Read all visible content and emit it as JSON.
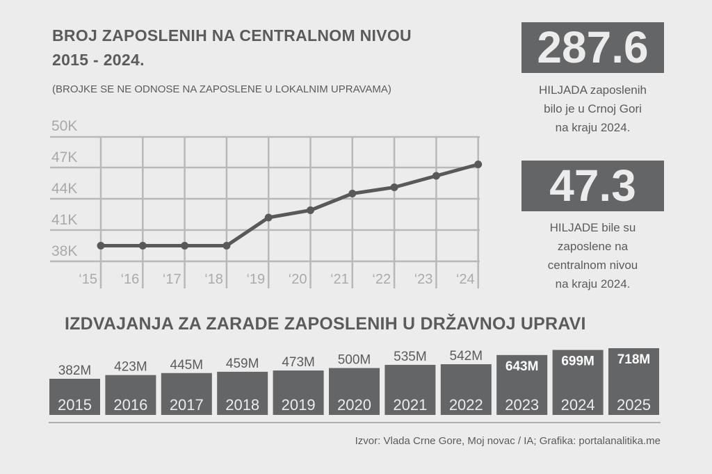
{
  "header": {
    "title_line1": "BROJ ZAPOSLENIH NA CENTRALNOM NIVOU",
    "title_line2": "2015 - 2024.",
    "subtitle": "(BROJKE SE NE ODNOSE NA ZAPOSLENE U LOKALNIM UPRAVAMA)"
  },
  "stats": [
    {
      "value": "287.6",
      "lines": [
        "HILJADA zaposlenih",
        "bilo je u Crnoj Gori",
        "na kraju 2024."
      ]
    },
    {
      "value": "47.3",
      "lines": [
        "HILJADE bile su",
        "zaposlene na",
        "centralnom nivou",
        "na kraju 2024."
      ]
    }
  ],
  "section2_title": "IZDVAJANJA ZA ZARADE ZAPOSLENIH U DRŽAVNOJ UPRAVI",
  "source": "Izvor: Vlada Crne Gore, Moj novac / IA; Grafika: portalanalitika.me",
  "colors": {
    "background": "#ececec",
    "dark": "#646567",
    "line": "#58595b",
    "grid": "#b8b8b8",
    "text": "#5a5b5d",
    "light_text": "#ececec"
  },
  "chart_data": [
    {
      "type": "line",
      "title": "BROJ ZAPOSLENIH NA CENTRALNOM NIVOU 2015 - 2024.",
      "categories": [
        "‘15",
        "‘16",
        "‘17",
        "‘18",
        "‘19",
        "‘20",
        "‘21",
        "‘22",
        "‘23",
        "‘24"
      ],
      "values": [
        39.5,
        39.5,
        39.5,
        39.5,
        42.2,
        42.9,
        44.5,
        45.1,
        46.2,
        47.3
      ],
      "unit": "thousands",
      "yticks": [
        {
          "v": 50,
          "label": "50K"
        },
        {
          "v": 47,
          "label": "47K"
        },
        {
          "v": 44,
          "label": "44K"
        },
        {
          "v": 41,
          "label": "41K"
        },
        {
          "v": 38,
          "label": "38K"
        }
      ],
      "ylim": [
        38,
        50
      ],
      "grid": true
    },
    {
      "type": "bar",
      "title": "IZDVAJANJA ZA ZARADE ZAPOSLENIH U DRŽAVNOJ UPRAVI",
      "categories": [
        "2015",
        "2016",
        "2017",
        "2018",
        "2019",
        "2020",
        "2021",
        "2022",
        "2023",
        "2024",
        "2025"
      ],
      "values": [
        382,
        423,
        445,
        459,
        473,
        500,
        535,
        542,
        643,
        699,
        718
      ],
      "labels": [
        "382M",
        "423M",
        "445M",
        "459M",
        "473M",
        "500M",
        "535M",
        "542M",
        "643M",
        "699M",
        "718M"
      ],
      "label_inside_from_index": 8
    }
  ]
}
